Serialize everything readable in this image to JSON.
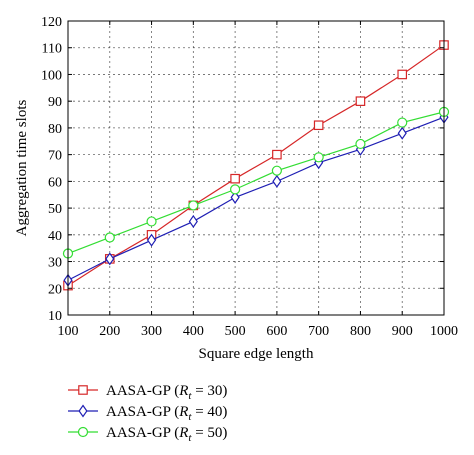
{
  "chart_data": {
    "type": "line",
    "title": "",
    "xlabel": "Square edge length",
    "ylabel": "Aggregation time slots",
    "x": [
      100,
      200,
      300,
      400,
      500,
      600,
      700,
      800,
      900,
      1000
    ],
    "xlim": [
      100,
      1000
    ],
    "ylim": [
      10,
      120
    ],
    "xticks": [
      "100",
      "200",
      "300",
      "400",
      "500",
      "600",
      "700",
      "800",
      "900",
      "1000"
    ],
    "yticks": [
      "10",
      "20",
      "30",
      "40",
      "50",
      "60",
      "70",
      "80",
      "90",
      "100",
      "110",
      "120"
    ],
    "grid": true,
    "legend_position": "bottom-outside",
    "series": [
      {
        "label_prefix": "AASA-GP (",
        "label_var": "R",
        "label_sub": "t",
        "label_suffix": " = 30)",
        "color": "#d62728",
        "marker": "square",
        "values": [
          21,
          31,
          40,
          51,
          61,
          70,
          81,
          90,
          100,
          111
        ]
      },
      {
        "label_prefix": "AASA-GP (",
        "label_var": "R",
        "label_sub": "t",
        "label_suffix": " = 40)",
        "color": "#1f1fb4",
        "marker": "diamond",
        "values": [
          23,
          31,
          38,
          45,
          54,
          60,
          67,
          72,
          78,
          84
        ]
      },
      {
        "label_prefix": "AASA-GP (",
        "label_var": "R",
        "label_sub": "t",
        "label_suffix": " = 50)",
        "color": "#33dd33",
        "marker": "circle",
        "values": [
          33,
          39,
          45,
          51,
          57,
          64,
          69,
          74,
          82,
          86
        ]
      }
    ]
  }
}
